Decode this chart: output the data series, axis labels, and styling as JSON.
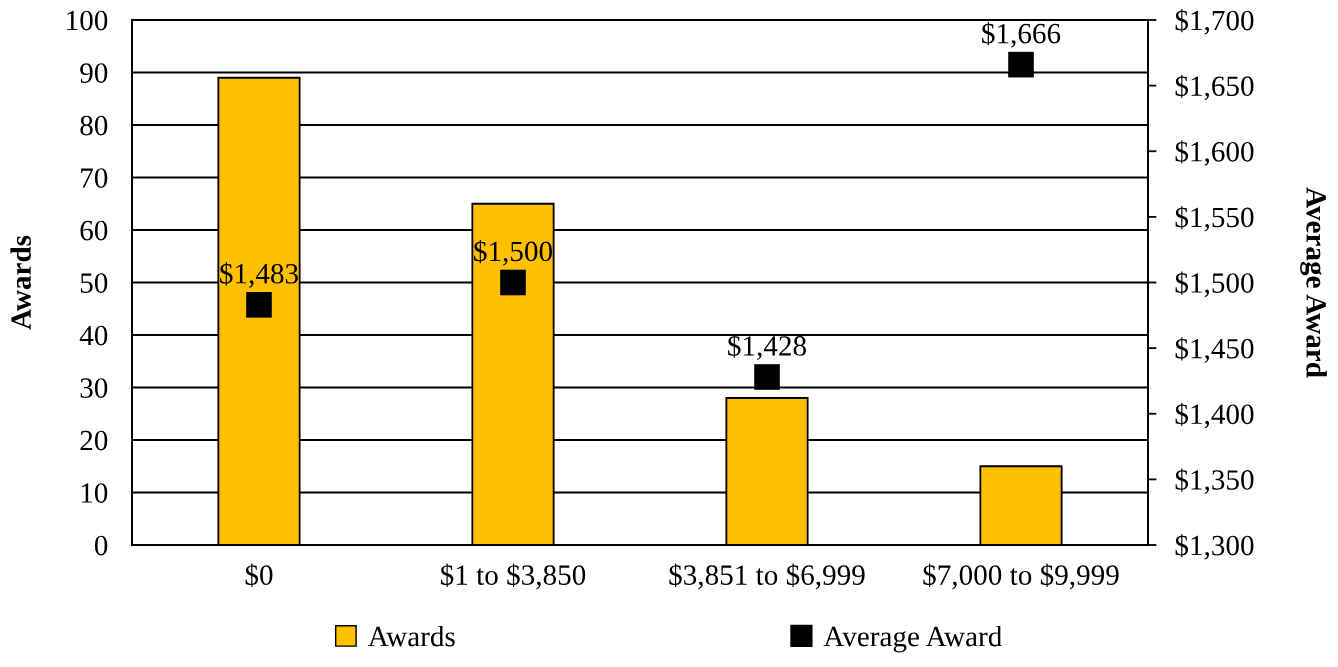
{
  "chart_data": {
    "type": "bar",
    "categories": [
      "$0",
      "$1 to $3,850",
      "$3,851 to $6,999",
      "$7,000 to $9,999"
    ],
    "series": [
      {
        "name": "Awards",
        "color": "#ffc000",
        "values": [
          89,
          65,
          28,
          15
        ]
      },
      {
        "name": "Average Award",
        "type": "scatter",
        "axis": "y2",
        "color": "#000000",
        "values": [
          1483,
          1500,
          1428,
          1666
        ],
        "value_labels": [
          "$1,483",
          "$1,500",
          "$1,428",
          "$1,666"
        ]
      }
    ],
    "ylabel": "Awards",
    "y2label": "Average Award",
    "ylim": [
      0,
      100
    ],
    "yticks": [
      0,
      10,
      20,
      30,
      40,
      50,
      60,
      70,
      80,
      90,
      100
    ],
    "y2lim": [
      1300,
      1700
    ],
    "y2ticks": [
      {
        "value": 1300,
        "label": "$1,300"
      },
      {
        "value": 1350,
        "label": "$1,350"
      },
      {
        "value": 1400,
        "label": "$1,400"
      },
      {
        "value": 1450,
        "label": "$1,450"
      },
      {
        "value": 1500,
        "label": "$1,500"
      },
      {
        "value": 1550,
        "label": "$1,550"
      },
      {
        "value": 1600,
        "label": "$1,600"
      },
      {
        "value": 1650,
        "label": "$1,650"
      },
      {
        "value": 1700,
        "label": "$1,700"
      }
    ],
    "grid": "y",
    "marker": "square",
    "legend": "bottom"
  }
}
